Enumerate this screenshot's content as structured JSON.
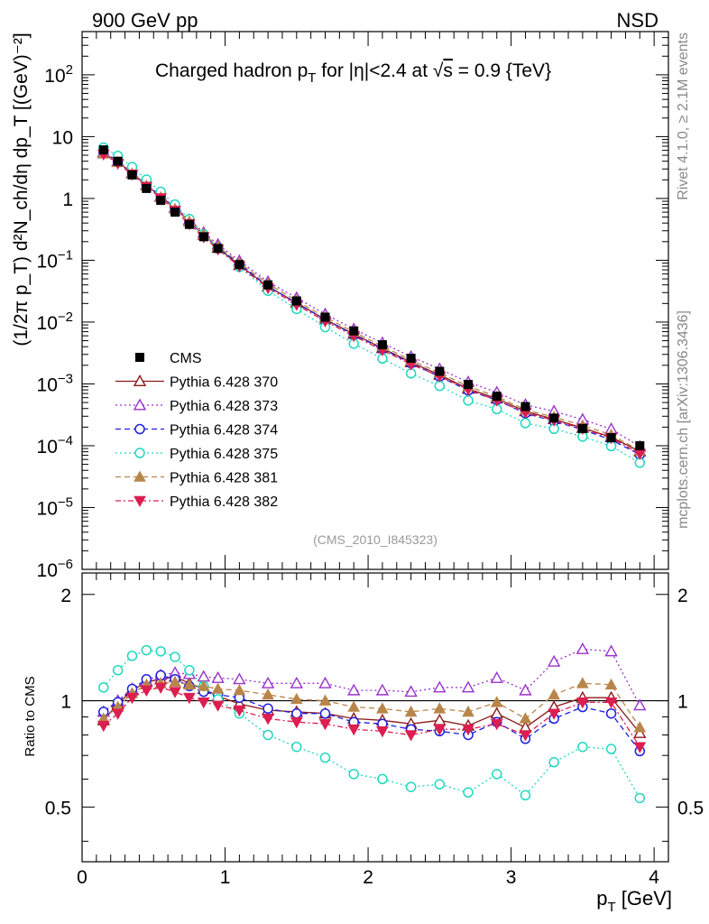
{
  "header": {
    "left": "900 GeV pp",
    "right": "NSD"
  },
  "side_labels": {
    "rivet": "Rivet 4.1.0, ≥ 2.1M events",
    "site": "mcplots.cern.ch [arXiv:1306.3436]"
  },
  "chart_data": {
    "type": "line",
    "title": "Charged hadron p_T for |η|<2.4 at √s = 0.9 {TeV}",
    "title_parts": {
      "a": "Charged hadron p",
      "sub": "T",
      "b": " for |η|<2.4 at ",
      "root": "√",
      "s": "s",
      "c": " = 0.9 {TeV}"
    },
    "analysis_id": "(CMS_2010_I845323)",
    "xlabel": "p_T [GeV]",
    "xlabel_parts": {
      "a": "p",
      "sub": "T",
      "b": " [GeV]"
    },
    "ylabel": "(1/2π p_T) d²N_ch/dη dp_T [(GeV)⁻²]",
    "ratio_ylabel": "Ratio to CMS",
    "xlim": [
      0,
      4.1
    ],
    "ylim": [
      1e-06,
      500
    ],
    "ratio_ylim": [
      0.35,
      2.3
    ],
    "x_ticks": [
      "0",
      "1",
      "2",
      "3",
      "4"
    ],
    "y_ticks": [
      {
        "v": 100,
        "m": "10",
        "e": "2"
      },
      {
        "v": 10,
        "m": "10",
        "e": ""
      },
      {
        "v": 1,
        "m": "1",
        "e": ""
      },
      {
        "v": 0.1,
        "m": "10",
        "e": "−1"
      },
      {
        "v": 0.01,
        "m": "10",
        "e": "−2"
      },
      {
        "v": 0.001,
        "m": "10",
        "e": "−3"
      },
      {
        "v": 0.0001,
        "m": "10",
        "e": "−4"
      },
      {
        "v": 1e-05,
        "m": "10",
        "e": "−5"
      },
      {
        "v": 1e-06,
        "m": "10",
        "e": "−6"
      }
    ],
    "ratio_ticks": [
      "0.5",
      "1",
      "2"
    ],
    "x": [
      0.15,
      0.25,
      0.35,
      0.45,
      0.55,
      0.65,
      0.75,
      0.85,
      0.95,
      1.1,
      1.3,
      1.5,
      1.7,
      1.9,
      2.1,
      2.3,
      2.5,
      2.7,
      2.9,
      3.1,
      3.3,
      3.5,
      3.7,
      3.9
    ],
    "data": {
      "name": "CMS",
      "values": [
        6.1,
        4.0,
        2.4,
        1.45,
        0.93,
        0.6,
        0.38,
        0.24,
        0.155,
        0.085,
        0.04,
        0.022,
        0.012,
        0.0072,
        0.0043,
        0.0026,
        0.0016,
        0.00098,
        0.00063,
        0.00043,
        0.00028,
        0.00019,
        0.000135,
        0.0001
      ]
    },
    "series": [
      {
        "name": "Pythia 6.428 370",
        "color": "#8b1a1a",
        "dash": "",
        "marker": "triangle-open",
        "ratio": [
          0.88,
          0.98,
          1.07,
          1.13,
          1.15,
          1.17,
          1.12,
          1.08,
          1.03,
          0.98,
          0.94,
          0.93,
          0.92,
          0.89,
          0.88,
          0.86,
          0.88,
          0.85,
          0.92,
          0.84,
          0.96,
          1.02,
          1.02,
          0.81
        ]
      },
      {
        "name": "Pythia 6.428 373",
        "color": "#9932cc",
        "dash": "2,3",
        "marker": "triangle-open",
        "ratio": [
          0.93,
          1.0,
          1.08,
          1.14,
          1.18,
          1.2,
          1.19,
          1.17,
          1.16,
          1.15,
          1.12,
          1.12,
          1.12,
          1.07,
          1.07,
          1.06,
          1.09,
          1.09,
          1.16,
          1.07,
          1.29,
          1.4,
          1.38,
          0.97
        ]
      },
      {
        "name": "Pythia 6.428 374",
        "color": "#1f1fdd",
        "dash": "6,4",
        "marker": "circle-open",
        "ratio": [
          0.93,
          0.99,
          1.08,
          1.15,
          1.18,
          1.15,
          1.1,
          1.06,
          1.04,
          1.02,
          0.95,
          0.92,
          0.92,
          0.87,
          0.86,
          0.83,
          0.82,
          0.8,
          0.87,
          0.78,
          0.89,
          0.96,
          0.92,
          0.72
        ]
      },
      {
        "name": "Pythia 6.428 375",
        "color": "#20d8c0",
        "dash": "2,3",
        "marker": "circle-open",
        "ratio": [
          1.09,
          1.22,
          1.34,
          1.39,
          1.38,
          1.33,
          1.22,
          1.1,
          1.01,
          0.92,
          0.8,
          0.74,
          0.69,
          0.62,
          0.6,
          0.57,
          0.58,
          0.55,
          0.62,
          0.54,
          0.67,
          0.74,
          0.73,
          0.53
        ]
      },
      {
        "name": "Pythia 6.428 381",
        "color": "#b8864b",
        "dash": "6,4",
        "marker": "triangle-filled",
        "ratio": [
          0.89,
          0.96,
          1.05,
          1.11,
          1.12,
          1.13,
          1.11,
          1.1,
          1.08,
          1.07,
          1.04,
          1.01,
          1.0,
          0.96,
          0.95,
          0.93,
          0.95,
          0.93,
          0.99,
          0.89,
          1.04,
          1.12,
          1.11,
          0.84
        ]
      },
      {
        "name": "Pythia 6.428 382",
        "color": "#dc1e50",
        "dash": "6,3,2,3",
        "marker": "triangle-down-filled",
        "ratio": [
          0.85,
          0.92,
          1.02,
          1.07,
          1.09,
          1.06,
          1.02,
          0.99,
          0.97,
          0.94,
          0.89,
          0.87,
          0.86,
          0.83,
          0.82,
          0.8,
          0.83,
          0.83,
          0.86,
          0.8,
          0.92,
          0.99,
          0.99,
          0.74
        ]
      }
    ]
  }
}
